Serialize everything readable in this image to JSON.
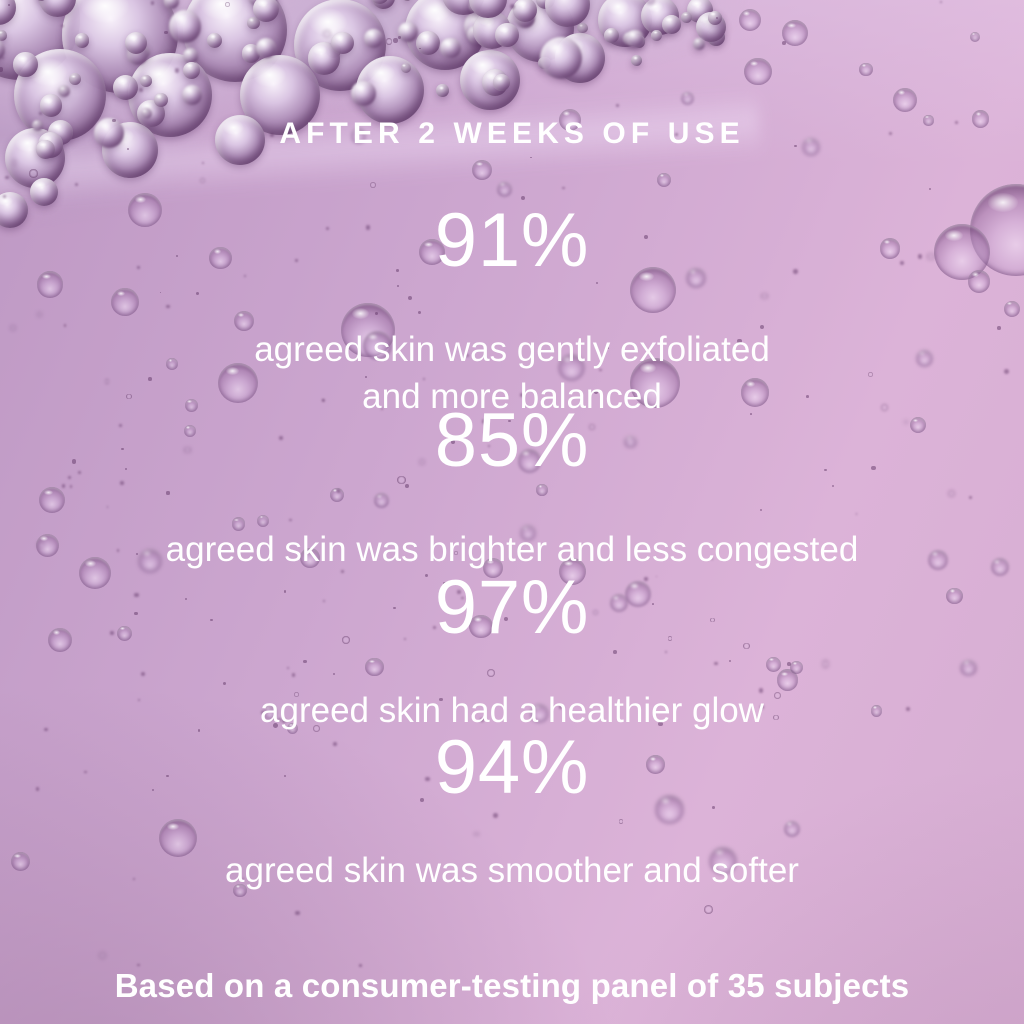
{
  "header": {
    "title": "AFTER 2 WEEKS OF USE"
  },
  "stats": [
    {
      "value": "91%",
      "caption": "agreed skin was gently exfoliated\nand more balanced"
    },
    {
      "value": "85%",
      "caption": "agreed skin was brighter and less congested"
    },
    {
      "value": "97%",
      "caption": "agreed skin had a healthier glow"
    },
    {
      "value": "94%",
      "caption": "agreed skin was smoother and softer"
    }
  ],
  "footer": {
    "disclaimer": "Based on a consumer-testing panel of 35 subjects"
  },
  "palette": {
    "text": "#ffffff",
    "background_left": "#bd98c3",
    "background_mid": "#cca6cf",
    "background_right": "#dcb3d8",
    "bubble_dark": "#5e3263",
    "foam_light": "#efe3f2"
  }
}
